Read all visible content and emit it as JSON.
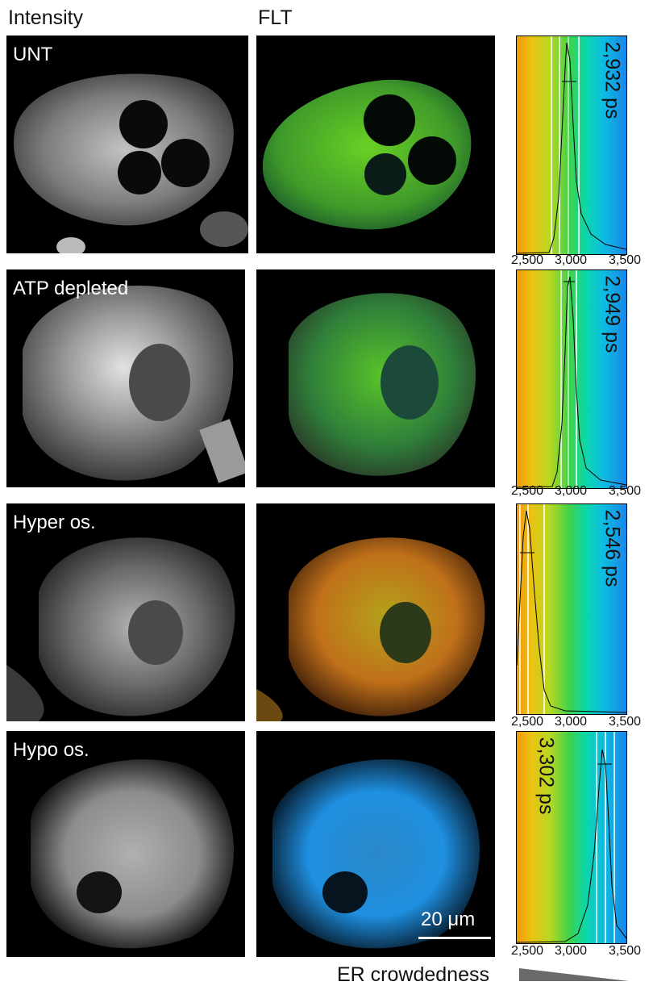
{
  "headers": {
    "intensity": "Intensity",
    "flt": "FLT"
  },
  "rows": [
    {
      "label": "UNT",
      "lifetime": "2,932 ps",
      "ticks": [
        "2,500",
        "3,000",
        "3,500"
      ]
    },
    {
      "label": "ATP depleted",
      "lifetime": "2,949 ps",
      "ticks": [
        "2,500",
        "3,000",
        "3,500"
      ]
    },
    {
      "label": "Hyper os.",
      "lifetime": "2,546 ps",
      "ticks": [
        "2,500",
        "3,000",
        "3,500"
      ]
    },
    {
      "label": "Hypo os.",
      "lifetime": "3,302 ps",
      "ticks": [
        "2,500",
        "3,000",
        "3,500"
      ]
    }
  ],
  "scale_bar": "20 μm",
  "footer": {
    "er_crowdedness": "ER crowdedness"
  },
  "colors": {
    "flt_green": "#5fd021",
    "flt_teal": "#1f8a6a",
    "flt_orange": "#c77a12",
    "flt_blue": "#1f8fe0",
    "lut_orange": "#f19a0a",
    "lut_green": "#3fd24a",
    "lut_blue": "#1a86ea"
  }
}
